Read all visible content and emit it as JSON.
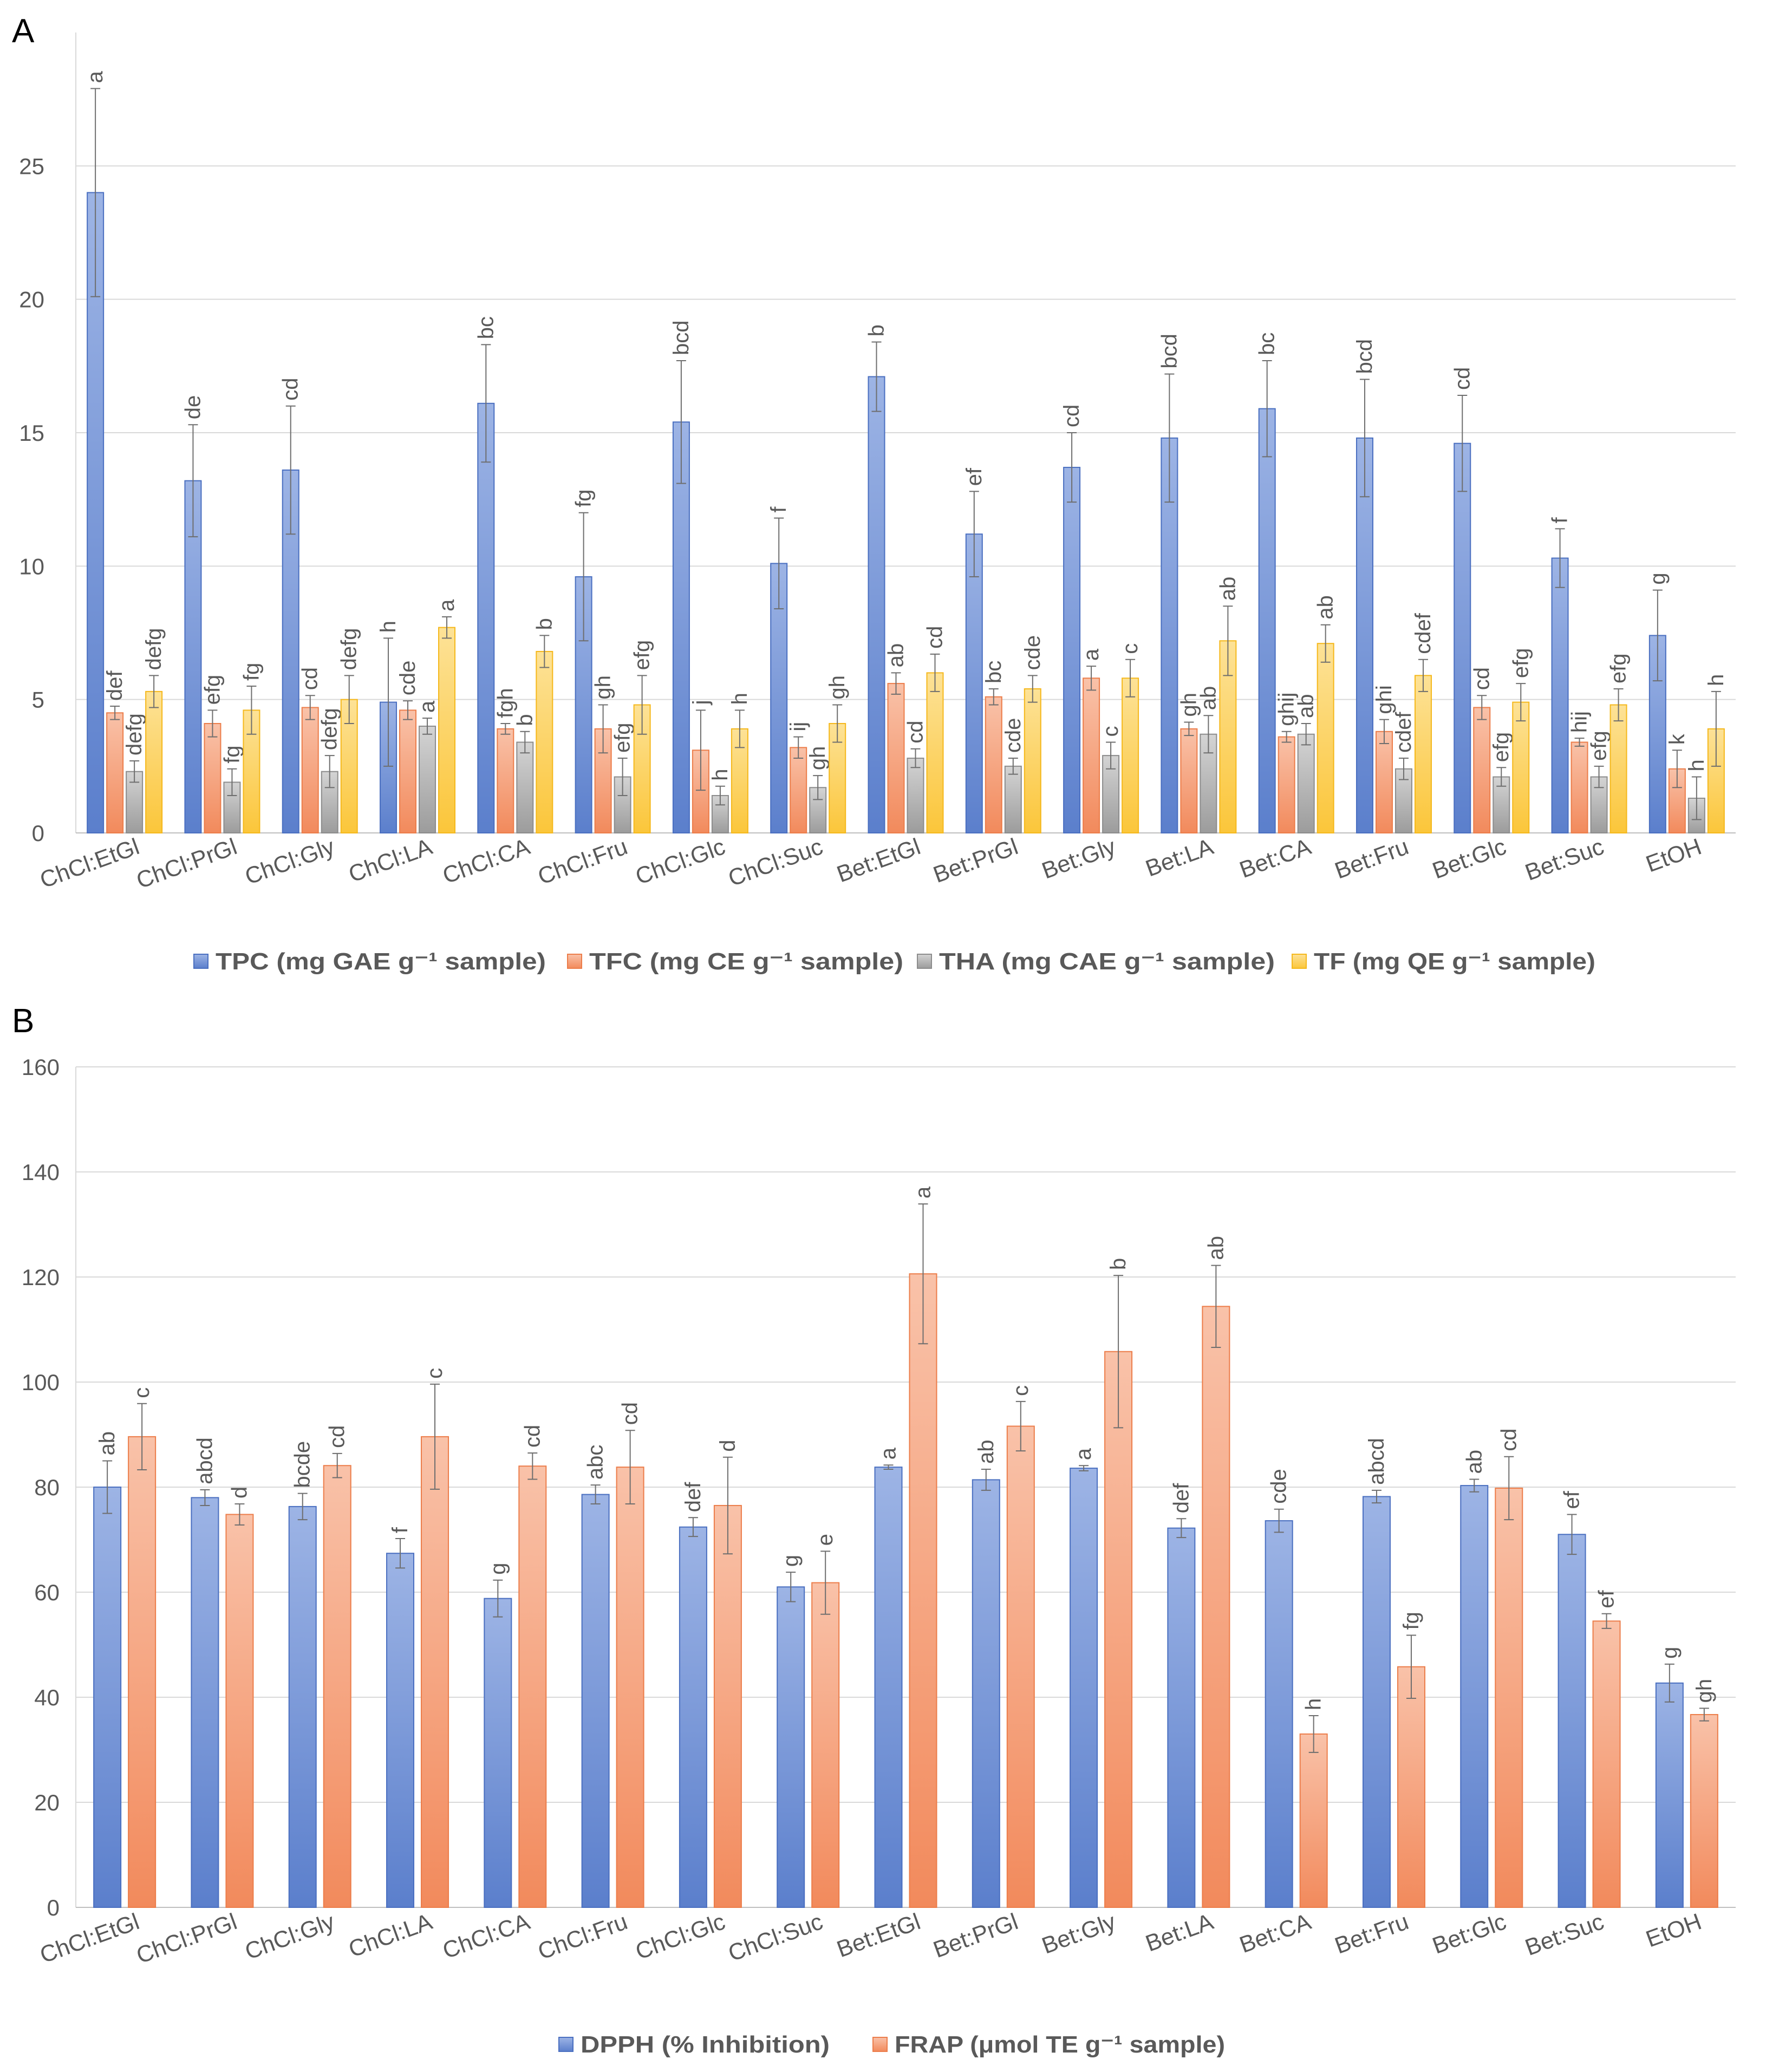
{
  "chart_data": [
    {
      "panel": "A",
      "type": "bar",
      "ylim": [
        0,
        30
      ],
      "yticks": [
        0,
        5,
        10,
        15,
        20,
        25
      ],
      "grid": true,
      "legend_position": "bottom",
      "categories": [
        "ChCl:EtGl",
        "ChCl:PrGl",
        "ChCl:Gly",
        "ChCl:LA",
        "ChCl:CA",
        "ChCl:Fru",
        "ChCl:Glc",
        "ChCl:Suc",
        "Bet:EtGl",
        "Bet:PrGl",
        "Bet:Gly",
        "Bet:LA",
        "Bet:CA",
        "Bet:Fru",
        "Bet:Glc",
        "Bet:Suc",
        "EtOH"
      ],
      "series": [
        {
          "name": "TPC (mg GAE g⁻¹ sample)",
          "color": "#7a9ad8",
          "values": [
            24.0,
            13.2,
            13.6,
            4.9,
            16.1,
            9.6,
            15.4,
            10.1,
            17.1,
            11.2,
            13.7,
            14.8,
            15.9,
            14.8,
            14.6,
            10.3,
            7.4
          ],
          "errors": [
            3.9,
            2.1,
            2.4,
            2.4,
            2.2,
            2.4,
            2.3,
            1.7,
            1.3,
            1.6,
            1.3,
            2.4,
            1.8,
            2.2,
            1.8,
            1.1,
            1.7
          ],
          "labels": [
            "a",
            "de",
            "cd",
            "h",
            "bc",
            "fg",
            "bcd",
            "f",
            "b",
            "ef",
            "cd",
            "bcd",
            "bc",
            "bcd",
            "cd",
            "f",
            "g"
          ]
        },
        {
          "name": "TFC (mg CE g⁻¹ sample)",
          "color": "#f4a07e",
          "values": [
            4.5,
            4.1,
            4.7,
            4.6,
            3.9,
            3.9,
            3.1,
            3.2,
            5.6,
            5.1,
            5.8,
            3.9,
            3.6,
            3.8,
            4.7,
            3.4,
            2.4
          ],
          "errors": [
            0.25,
            0.5,
            0.45,
            0.35,
            0.2,
            0.9,
            1.5,
            0.4,
            0.4,
            0.3,
            0.45,
            0.25,
            0.2,
            0.45,
            0.45,
            0.15,
            0.7
          ],
          "labels": [
            "def",
            "efg",
            "cd",
            "cde",
            "fgh",
            "gh",
            "j",
            "ij",
            "ab",
            "bc",
            "a",
            "gh",
            "ghij",
            "ghi",
            "cd",
            "hij",
            "k"
          ]
        },
        {
          "name": "THA (mg CAE g⁻¹ sample)",
          "color": "#bcbcbc",
          "values": [
            2.3,
            1.9,
            2.3,
            4.0,
            3.4,
            2.1,
            1.4,
            1.7,
            2.8,
            2.5,
            2.9,
            3.7,
            3.7,
            2.4,
            2.1,
            2.1,
            1.3
          ],
          "errors": [
            0.4,
            0.5,
            0.6,
            0.3,
            0.4,
            0.7,
            0.35,
            0.45,
            0.35,
            0.3,
            0.5,
            0.7,
            0.4,
            0.4,
            0.35,
            0.4,
            0.8
          ],
          "labels": [
            "defg",
            "fg",
            "defg",
            "a",
            "b",
            "efg",
            "h",
            "gh",
            "cd",
            "cde",
            "c",
            "ab",
            "ab",
            "cdef",
            "efg",
            "efg",
            "h"
          ]
        },
        {
          "name": "TF (mg QE g⁻¹ sample)",
          "color": "#fcd56a",
          "values": [
            5.3,
            4.6,
            5.0,
            7.7,
            6.8,
            4.8,
            3.9,
            4.1,
            6.0,
            5.4,
            5.8,
            7.2,
            7.1,
            5.9,
            4.9,
            4.8,
            3.9
          ],
          "errors": [
            0.6,
            0.9,
            0.9,
            0.4,
            0.6,
            1.1,
            0.7,
            0.7,
            0.7,
            0.5,
            0.7,
            1.3,
            0.7,
            0.6,
            0.7,
            0.6,
            1.4
          ],
          "labels": [
            "defg",
            "fg",
            "defg",
            "a",
            "b",
            "efg",
            "h",
            "gh",
            "cd",
            "cde",
            "c",
            "ab",
            "ab",
            "cdef",
            "efg",
            "efg",
            "h"
          ]
        }
      ]
    },
    {
      "panel": "B",
      "type": "bar",
      "ylim": [
        0,
        160
      ],
      "yticks": [
        0,
        20,
        40,
        60,
        80,
        100,
        120,
        140,
        160
      ],
      "grid": true,
      "legend_position": "bottom",
      "categories": [
        "ChCl:EtGl",
        "ChCl:PrGl",
        "ChCl:Gly",
        "ChCl:LA",
        "ChCl:CA",
        "ChCl:Fru",
        "ChCl:Glc",
        "ChCl:Suc",
        "Bet:EtGl",
        "Bet:PrGl",
        "Bet:Gly",
        "Bet:LA",
        "Bet:CA",
        "Bet:Fru",
        "Bet:Glc",
        "Bet:Suc",
        "EtOH"
      ],
      "series": [
        {
          "name": "DPPH (% Inhibition)",
          "color": "#7a9ad8",
          "values": [
            80.0,
            78.0,
            76.3,
            67.4,
            58.8,
            78.6,
            72.4,
            61.0,
            83.8,
            81.4,
            83.6,
            72.2,
            73.6,
            78.2,
            80.3,
            71.0,
            42.7
          ],
          "errors": [
            5.0,
            1.5,
            2.5,
            2.8,
            3.5,
            1.8,
            1.8,
            2.8,
            0.4,
            2.0,
            0.5,
            1.8,
            2.2,
            1.2,
            1.2,
            3.8,
            3.6
          ],
          "labels": [
            "ab",
            "abcd",
            "bcde",
            "f",
            "g",
            "abc",
            "def",
            "g",
            "a",
            "ab",
            "a",
            "def",
            "cde",
            "abcd",
            "ab",
            "ef",
            "g"
          ]
        },
        {
          "name": "FRAP (μmol TE g⁻¹ sample)",
          "color": "#f4a07e",
          "values": [
            89.6,
            74.8,
            84.1,
            89.6,
            84.0,
            83.8,
            76.5,
            61.8,
            120.6,
            91.6,
            105.8,
            114.4,
            33.0,
            45.8,
            79.8,
            54.5,
            36.7
          ],
          "errors": [
            6.3,
            2.0,
            2.3,
            10.0,
            2.5,
            7.0,
            9.2,
            6.0,
            13.3,
            4.7,
            14.5,
            7.8,
            3.5,
            6.0,
            6.0,
            1.4,
            1.2
          ],
          "labels": [
            "c",
            "d",
            "cd",
            "c",
            "cd",
            "cd",
            "d",
            "e",
            "a",
            "c",
            "b",
            "ab",
            "h",
            "fg",
            "cd",
            "ef",
            "gh"
          ]
        }
      ]
    }
  ]
}
